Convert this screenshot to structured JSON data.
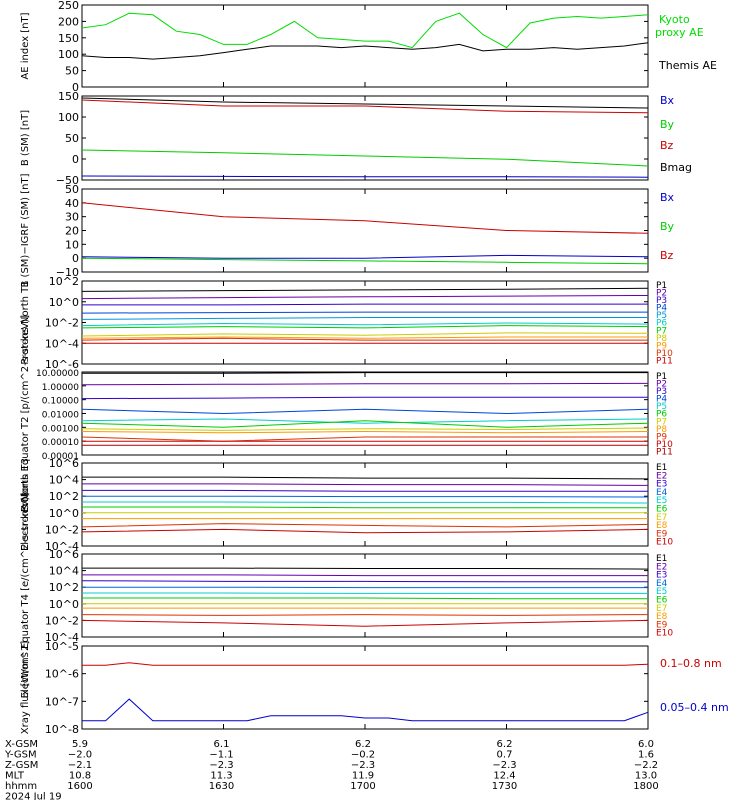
{
  "chart_data": [
    {
      "type": "line",
      "panel": "ae",
      "ylabel": "AE index [nT]",
      "yticks": [
        "250",
        "200",
        "150",
        "100",
        "50",
        "0"
      ],
      "ylim": [
        0,
        250
      ],
      "x": [
        "1600",
        "1605",
        "1610",
        "1615",
        "1620",
        "1625",
        "1630",
        "1635",
        "1640",
        "1645",
        "1650",
        "1655",
        "1700",
        "1705",
        "1710",
        "1715",
        "1720",
        "1725",
        "1730",
        "1735",
        "1740",
        "1745",
        "1750",
        "1755",
        "1800"
      ],
      "series": [
        {
          "name": "Kyoto proxy AE",
          "color": "#00dd00",
          "values": [
            180,
            190,
            225,
            220,
            170,
            160,
            130,
            130,
            160,
            200,
            150,
            145,
            140,
            140,
            120,
            200,
            225,
            160,
            120,
            195,
            210,
            215,
            210,
            215,
            220
          ]
        },
        {
          "name": "Themis AE",
          "color": "#000000",
          "values": [
            95,
            90,
            90,
            85,
            90,
            95,
            105,
            115,
            125,
            125,
            125,
            120,
            125,
            120,
            115,
            120,
            130,
            110,
            115,
            115,
            120,
            115,
            120,
            125,
            135
          ]
        }
      ]
    },
    {
      "type": "line",
      "panel": "b_sm",
      "ylabel": "B (SM) [nT]",
      "yticks": [
        "150",
        "100",
        "50",
        "0",
        "−50"
      ],
      "ylim": [
        -60,
        150
      ],
      "x": [
        "1600",
        "1630",
        "1700",
        "1730",
        "1800"
      ],
      "series": [
        {
          "name": "Bx",
          "color": "#0000cc",
          "values": [
            -50,
            -51,
            -52,
            -52,
            -53
          ]
        },
        {
          "name": "By",
          "color": "#00cc00",
          "values": [
            15,
            8,
            0,
            -8,
            -25
          ]
        },
        {
          "name": "Bz",
          "color": "#cc0000",
          "values": [
            140,
            125,
            125,
            112,
            108
          ]
        },
        {
          "name": "Bmag",
          "color": "#000000",
          "values": [
            145,
            135,
            130,
            125,
            120
          ]
        }
      ]
    },
    {
      "type": "line",
      "panel": "b_igrf",
      "ylabel": "B (SM)−IGRF (SM) [nT]",
      "yticks": [
        "50",
        "40",
        "30",
        "20",
        "10",
        "0",
        "−10"
      ],
      "ylim": [
        -10,
        50
      ],
      "x": [
        "1600",
        "1630",
        "1700",
        "1730",
        "1800"
      ],
      "series": [
        {
          "name": "Bx",
          "color": "#0000cc",
          "values": [
            1,
            0,
            0,
            2,
            1
          ]
        },
        {
          "name": "By",
          "color": "#00cc00",
          "values": [
            0,
            -1,
            -2,
            -3,
            -4
          ]
        },
        {
          "name": "Bz",
          "color": "#cc0000",
          "values": [
            40,
            30,
            27,
            20,
            18
          ]
        }
      ]
    },
    {
      "type": "line",
      "panel": "protons_north_t1",
      "ylabel": "Protons North T1",
      "yscale": "log",
      "yticks": [
        "10^2",
        "10^0",
        "10^-2",
        "10^-4",
        "10^-6"
      ],
      "ylim": [
        1e-06,
        100
      ],
      "x": [
        "1600",
        "1630",
        "1700",
        "1730",
        "1800"
      ],
      "series": [
        {
          "name": "P1",
          "color": "#000000",
          "values": [
            10,
            12,
            14,
            16,
            20
          ]
        },
        {
          "name": "P2",
          "color": "#6600aa",
          "values": [
            2,
            2.5,
            3,
            3.5,
            4
          ]
        },
        {
          "name": "P3",
          "color": "#3300cc",
          "values": [
            0.5,
            0.5,
            0.6,
            0.6,
            0.6
          ]
        },
        {
          "name": "P4",
          "color": "#0044dd",
          "values": [
            0.08,
            0.09,
            0.1,
            0.1,
            0.1
          ]
        },
        {
          "name": "P5",
          "color": "#0099dd",
          "values": [
            0.02,
            0.025,
            0.03,
            0.03,
            0.03
          ]
        },
        {
          "name": "P6",
          "color": "#00cccc",
          "values": [
            0.005,
            0.008,
            0.006,
            0.009,
            0.007
          ]
        },
        {
          "name": "P7",
          "color": "#00cc00",
          "values": [
            0.003,
            0.004,
            0.003,
            0.005,
            0.004
          ]
        },
        {
          "name": "P8",
          "color": "#cccc00",
          "values": [
            0.0005,
            0.0008,
            0.0006,
            0.001,
            0.0009
          ]
        },
        {
          "name": "P9",
          "color": "#ff9900",
          "values": [
            0.0003,
            0.0004,
            0.0003,
            0.0004,
            0.0004
          ]
        },
        {
          "name": "P10",
          "color": "#dd3300",
          "values": [
            0.0002,
            0.0003,
            0.0002,
            0.0002,
            0.0002
          ]
        },
        {
          "name": "P11",
          "color": "#cc0000",
          "values": [
            0.0001,
            0.0001,
            0.0001,
            0.0001,
            0.0001
          ]
        }
      ]
    },
    {
      "type": "line",
      "panel": "protons_equator_t2",
      "ylabel": "Protons Equator T2 [p/(cm^2-s-sr-keV)]",
      "yscale": "log",
      "yticks": [
        "10.00000",
        "1.00000",
        "0.10000",
        "0.01000",
        "0.00100",
        "0.00010",
        "0.00001"
      ],
      "ylim": [
        1e-05,
        10
      ],
      "x": [
        "1600",
        "1630",
        "1700",
        "1730",
        "1800"
      ],
      "series": [
        {
          "name": "P1",
          "color": "#000000",
          "values": [
            8,
            8,
            9,
            9,
            9
          ]
        },
        {
          "name": "P2",
          "color": "#6600aa",
          "values": [
            1.2,
            1.3,
            1.4,
            1.4,
            1.5
          ]
        },
        {
          "name": "P3",
          "color": "#3300cc",
          "values": [
            0.12,
            0.13,
            0.15,
            0.15,
            0.15
          ]
        },
        {
          "name": "P4",
          "color": "#0044dd",
          "values": [
            0.02,
            0.01,
            0.02,
            0.01,
            0.02
          ]
        },
        {
          "name": "P5",
          "color": "#00cccc",
          "values": [
            0.003,
            0.004,
            0.002,
            0.003,
            0.004
          ]
        },
        {
          "name": "P6",
          "color": "#00cc00",
          "values": [
            0.002,
            0.001,
            0.003,
            0.001,
            0.002
          ]
        },
        {
          "name": "P7",
          "color": "#cccc00",
          "values": [
            0.0008,
            0.0006,
            0.0008,
            0.0007,
            0.0009
          ]
        },
        {
          "name": "P8",
          "color": "#ff9900",
          "values": [
            0.0005,
            0.0004,
            0.0005,
            0.0004,
            0.0005
          ]
        },
        {
          "name": "P9",
          "color": "#dd3300",
          "values": [
            0.0002,
            0.0001,
            0.0002,
            0.0002,
            0.0002
          ]
        },
        {
          "name": "P10",
          "color": "#cc0000",
          "values": [
            0.0001,
            0.0001,
            0.0001,
            0.0001,
            0.0001
          ]
        },
        {
          "name": "P11",
          "color": "#aa0000",
          "values": [
            5e-05,
            5e-05,
            5e-05,
            5e-05,
            5e-05
          ]
        }
      ]
    },
    {
      "type": "line",
      "panel": "electrons_north_t3",
      "ylabel": "Electrons North T3",
      "yscale": "log",
      "yticks": [
        "10^6",
        "10^4",
        "10^2",
        "10^0",
        "10^-2",
        "10^-4"
      ],
      "ylim": [
        0.0001,
        1000000.0
      ],
      "x": [
        "1600",
        "1630",
        "1700",
        "1730",
        "1800"
      ],
      "series": [
        {
          "name": "E1",
          "color": "#000000",
          "values": [
            20000,
            20000,
            15000,
            15000,
            12000
          ]
        },
        {
          "name": "E2",
          "color": "#6600aa",
          "values": [
            3000,
            3000,
            2500,
            2500,
            2000
          ]
        },
        {
          "name": "E3",
          "color": "#3300cc",
          "values": [
            500,
            500,
            400,
            400,
            400
          ]
        },
        {
          "name": "E4",
          "color": "#0066dd",
          "values": [
            100,
            100,
            90,
            90,
            80
          ]
        },
        {
          "name": "E5",
          "color": "#00cccc",
          "values": [
            20,
            20,
            18,
            18,
            15
          ]
        },
        {
          "name": "E6",
          "color": "#00cc00",
          "values": [
            5,
            5,
            4,
            4,
            4
          ]
        },
        {
          "name": "E7",
          "color": "#cccc00",
          "values": [
            1,
            1,
            1,
            1,
            1
          ]
        },
        {
          "name": "E8",
          "color": "#ff9900",
          "values": [
            0.2,
            0.2,
            0.2,
            0.2,
            0.2
          ]
        },
        {
          "name": "E9",
          "color": "#dd3300",
          "values": [
            0.02,
            0.05,
            0.03,
            0.02,
            0.04
          ]
        },
        {
          "name": "E10",
          "color": "#cc0000",
          "values": [
            0.005,
            0.01,
            0.004,
            0.005,
            0.01
          ]
        }
      ]
    },
    {
      "type": "line",
      "panel": "electrons_equator_t4",
      "ylabel": "Electrons Equator T4 [e/(cm^2-s-sr-keV)]",
      "yscale": "log",
      "yticks": [
        "10^6",
        "10^4",
        "10^2",
        "10^0",
        "10^-2",
        "10^-4"
      ],
      "ylim": [
        0.0001,
        1000000.0
      ],
      "x": [
        "1600",
        "1630",
        "1700",
        "1730",
        "1800"
      ],
      "series": [
        {
          "name": "E1",
          "color": "#000000",
          "values": [
            20000,
            20000,
            18000,
            18000,
            15000
          ]
        },
        {
          "name": "E2",
          "color": "#6600aa",
          "values": [
            3000,
            3000,
            2500,
            2500,
            2500
          ]
        },
        {
          "name": "E3",
          "color": "#3300cc",
          "values": [
            600,
            500,
            500,
            450,
            450
          ]
        },
        {
          "name": "E4",
          "color": "#0066dd",
          "values": [
            100,
            100,
            90,
            90,
            90
          ]
        },
        {
          "name": "E5",
          "color": "#00cccc",
          "values": [
            20,
            20,
            18,
            18,
            18
          ]
        },
        {
          "name": "E6",
          "color": "#00cc00",
          "values": [
            5,
            5,
            5,
            4,
            4
          ]
        },
        {
          "name": "E7",
          "color": "#cccc00",
          "values": [
            1,
            1,
            1,
            1,
            1
          ]
        },
        {
          "name": "E8",
          "color": "#ff9900",
          "values": [
            0.3,
            0.3,
            0.3,
            0.3,
            0.3
          ]
        },
        {
          "name": "E9",
          "color": "#dd3300",
          "values": [
            0.05,
            0.04,
            0.05,
            0.04,
            0.05
          ]
        },
        {
          "name": "E10",
          "color": "#cc0000",
          "values": [
            0.01,
            0.005,
            0.002,
            0.005,
            0.01
          ]
        }
      ]
    },
    {
      "type": "line",
      "panel": "xray",
      "ylabel": "Xray flux [W/m^2]",
      "yscale": "log",
      "yticks": [
        "10^-5",
        "10^-6",
        "10^-7",
        "10^-8"
      ],
      "ylim": [
        1e-08,
        1e-05
      ],
      "x": [
        "1600",
        "1605",
        "1610",
        "1615",
        "1620",
        "1625",
        "1630",
        "1635",
        "1640",
        "1645",
        "1650",
        "1655",
        "1700",
        "1705",
        "1710",
        "1715",
        "1720",
        "1725",
        "1730",
        "1735",
        "1740",
        "1745",
        "1750",
        "1755",
        "1800"
      ],
      "series": [
        {
          "name": "0.1–0.8 nm",
          "color": "#cc0000",
          "values": [
            2e-06,
            2e-06,
            2.5e-06,
            2e-06,
            2e-06,
            2e-06,
            2e-06,
            2e-06,
            2e-06,
            2e-06,
            2e-06,
            2e-06,
            2e-06,
            2e-06,
            2e-06,
            2e-06,
            2e-06,
            2e-06,
            2e-06,
            2e-06,
            2e-06,
            2e-06,
            2e-06,
            2e-06,
            2.2e-06
          ]
        },
        {
          "name": "0.05–0.4 nm",
          "color": "#0000cc",
          "values": [
            2e-08,
            2e-08,
            1.2e-07,
            2e-08,
            2e-08,
            2e-08,
            2e-08,
            2e-08,
            3e-08,
            3e-08,
            3e-08,
            3e-08,
            2.5e-08,
            2.5e-08,
            2e-08,
            2e-08,
            2e-08,
            2e-08,
            2e-08,
            2e-08,
            2e-08,
            2e-08,
            2e-08,
            2e-08,
            4e-08
          ]
        }
      ]
    }
  ],
  "footer": {
    "row_labels": [
      "X-GSM",
      "Y-GSM",
      "Z-GSM",
      "MLT",
      "hhmm",
      "2024 Jul 19"
    ],
    "columns": [
      {
        "values": [
          "5.9",
          "−2.0",
          "−2.1",
          "10.8",
          "1600"
        ]
      },
      {
        "values": [
          "6.1",
          "−1.1",
          "−2.3",
          "11.3",
          "1630"
        ]
      },
      {
        "values": [
          "6.2",
          "−0.2",
          "−2.3",
          "11.9",
          "1700"
        ]
      },
      {
        "values": [
          "6.2",
          "0.7",
          "−2.3",
          "12.4",
          "1730"
        ]
      },
      {
        "values": [
          "6.0",
          "1.6",
          "−2.2",
          "13.0",
          "1800"
        ]
      }
    ]
  },
  "legend_labels": {
    "ae": [
      "Kyoto",
      "proxy AE",
      "Themis AE"
    ],
    "b_sm": [
      "Bx",
      "By",
      "Bz",
      "Bmag"
    ],
    "b_igrf": [
      "Bx",
      "By",
      "Bz"
    ],
    "protons_north_t1": [
      "P1",
      "P2",
      "P3",
      "P4",
      "P5",
      "P6",
      "P7",
      "P8",
      "P9",
      "P10",
      "P11"
    ],
    "protons_equator_t2": [
      "P1",
      "P2",
      "P3",
      "P4",
      "P5",
      "P6",
      "P7",
      "P8",
      "P9",
      "P10",
      "P11"
    ],
    "electrons_north_t3": [
      "E1",
      "E2",
      "E3",
      "E4",
      "E5",
      "E6",
      "E7",
      "E8",
      "E9",
      "E10"
    ],
    "electrons_equator_t4": [
      "E1",
      "E2",
      "E3",
      "E4",
      "E5",
      "E6",
      "E7",
      "E8",
      "E9",
      "E10"
    ],
    "xray": [
      "0.1–0.8 nm",
      "0.05–0.4 nm"
    ]
  }
}
